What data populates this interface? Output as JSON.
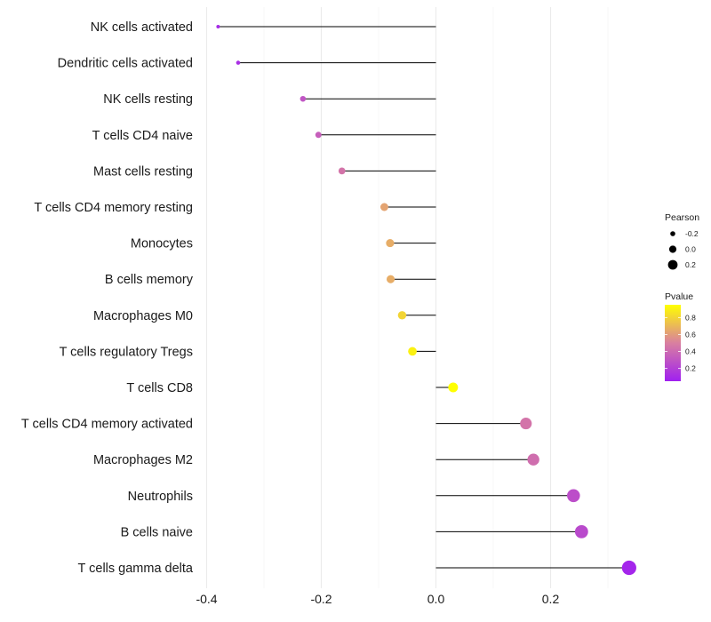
{
  "chart_data": {
    "type": "lollipop",
    "title": "",
    "xlabel": "",
    "ylabel": "",
    "xlim": [
      -0.41,
      0.345
    ],
    "x_ticks": [
      -0.4,
      -0.2,
      0.0,
      0.2
    ],
    "x_tick_labels": [
      "-0.4",
      "-0.2",
      "0.0",
      "0.2"
    ],
    "baseline": 0,
    "grid": true,
    "categories": [
      "NK cells activated",
      "Dendritic cells activated",
      "NK cells resting",
      "T cells CD4 naive",
      "Mast cells resting",
      "T cells CD4 memory resting",
      "Monocytes",
      "B cells memory",
      "Macrophages M0",
      "T cells regulatory  Tregs ",
      "T cells CD8",
      "T cells CD4 memory activated",
      "Macrophages M2",
      "Neutrophils",
      "B cells naive",
      "T cells gamma delta"
    ],
    "pearson": [
      -0.38,
      -0.345,
      -0.232,
      -0.205,
      -0.164,
      -0.09,
      -0.08,
      -0.079,
      -0.059,
      -0.041,
      0.03,
      0.157,
      0.17,
      0.24,
      0.254,
      0.337
    ],
    "pvalue": [
      0.1,
      0.12,
      0.3,
      0.35,
      0.45,
      0.63,
      0.66,
      0.66,
      0.8,
      0.9,
      0.97,
      0.45,
      0.42,
      0.27,
      0.25,
      0.08
    ],
    "legend": {
      "position": "right",
      "size": {
        "title": "Pearson",
        "values": [
          -0.2,
          0.0,
          0.2
        ],
        "labels": [
          "-0.2",
          "0.0",
          "0.2"
        ]
      },
      "color": {
        "title": "Pvalue",
        "range": [
          0.05,
          0.95
        ],
        "ticks": [
          0.8,
          0.6,
          0.4,
          0.2
        ],
        "labels": [
          "0.8",
          "0.6",
          "0.4",
          "0.2"
        ],
        "low_color": "#a020f0",
        "mid_color": "#d97fa0",
        "high_color": "#ffff00"
      }
    }
  }
}
